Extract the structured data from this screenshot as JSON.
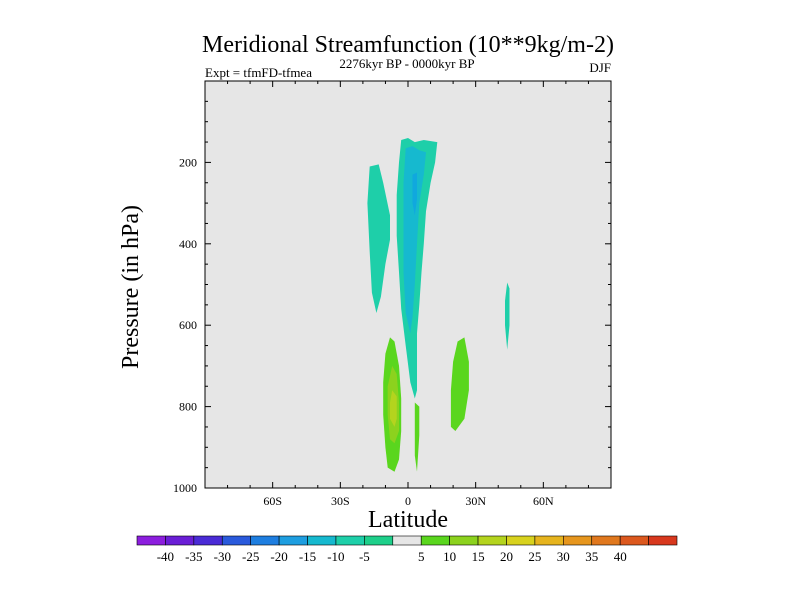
{
  "chart_data": {
    "type": "contour",
    "title": "Meridional Streamfunction (10**9kg/m-2)",
    "left_subtitle": "Expt = tfmFD-tfmea",
    "center_subtitle": "2276kyr BP - 0000kyr BP",
    "right_subtitle": "DJF",
    "xlabel": "Latitude",
    "ylabel": "Pressure (in hPa)",
    "xlim": [
      -90,
      90
    ],
    "ylim": [
      1000,
      0
    ],
    "x_ticks": [
      {
        "value": -60,
        "label": "60S"
      },
      {
        "value": -30,
        "label": "30S"
      },
      {
        "value": 0,
        "label": "0"
      },
      {
        "value": 30,
        "label": "30N"
      },
      {
        "value": 60,
        "label": "60N"
      }
    ],
    "y_ticks": [
      {
        "value": 200,
        "label": "200"
      },
      {
        "value": 400,
        "label": "400"
      },
      {
        "value": 600,
        "label": "600"
      },
      {
        "value": 800,
        "label": "800"
      },
      {
        "value": 1000,
        "label": "1000"
      }
    ],
    "background_color": "#e6e6e6",
    "regions": [
      {
        "name": "southern-upper-cell",
        "level": -10,
        "color": "#1ecfa9",
        "points": [
          [
            -17,
            210
          ],
          [
            -13,
            205
          ],
          [
            -11,
            250
          ],
          [
            -8,
            330
          ],
          [
            -8,
            390
          ],
          [
            -10,
            450
          ],
          [
            -12,
            530
          ],
          [
            -14,
            570
          ],
          [
            -16,
            520
          ],
          [
            -17,
            420
          ],
          [
            -18,
            300
          ]
        ]
      },
      {
        "name": "equatorial-upper-cell",
        "level": -10,
        "color": "#1ecfa9",
        "points": [
          [
            -3,
            145
          ],
          [
            0,
            140
          ],
          [
            3,
            150
          ],
          [
            7,
            145
          ],
          [
            13,
            150
          ],
          [
            12,
            200
          ],
          [
            10,
            250
          ],
          [
            8,
            320
          ],
          [
            7,
            400
          ],
          [
            6,
            470
          ],
          [
            5,
            550
          ],
          [
            4,
            620
          ],
          [
            4,
            700
          ],
          [
            4,
            760
          ],
          [
            3,
            780
          ],
          [
            1,
            740
          ],
          [
            -1,
            650
          ],
          [
            -3,
            560
          ],
          [
            -4,
            470
          ],
          [
            -5,
            380
          ],
          [
            -5,
            280
          ],
          [
            -4,
            200
          ]
        ]
      },
      {
        "name": "equatorial-core",
        "level": -15,
        "color": "#16b9cf",
        "points": [
          [
            -1,
            165
          ],
          [
            2,
            160
          ],
          [
            5,
            170
          ],
          [
            8,
            175
          ],
          [
            7,
            230
          ],
          [
            5,
            300
          ],
          [
            4,
            400
          ],
          [
            3,
            500
          ],
          [
            2,
            580
          ],
          [
            1,
            620
          ],
          [
            -1,
            570
          ],
          [
            -2,
            470
          ],
          [
            -2,
            350
          ],
          [
            -2,
            250
          ]
        ]
      },
      {
        "name": "equatorial-inner-core",
        "level": -20,
        "color": "#10a8de",
        "points": [
          [
            2,
            230
          ],
          [
            4,
            225
          ],
          [
            4,
            290
          ],
          [
            3,
            330
          ],
          [
            2,
            300
          ]
        ]
      },
      {
        "name": "southern-lower-cell",
        "level": 5,
        "color": "#5ad61e",
        "points": [
          [
            -8,
            630
          ],
          [
            -6,
            640
          ],
          [
            -4,
            700
          ],
          [
            -3,
            780
          ],
          [
            -3,
            860
          ],
          [
            -4,
            930
          ],
          [
            -6,
            960
          ],
          [
            -9,
            950
          ],
          [
            -10,
            900
          ],
          [
            -11,
            820
          ],
          [
            -11,
            740
          ],
          [
            -10,
            670
          ]
        ]
      },
      {
        "name": "southern-lower-core",
        "level": 10,
        "color": "#8cd21e",
        "points": [
          [
            -7,
            700
          ],
          [
            -5,
            720
          ],
          [
            -4,
            790
          ],
          [
            -4,
            860
          ],
          [
            -6,
            890
          ],
          [
            -8,
            880
          ],
          [
            -9,
            820
          ],
          [
            -9,
            750
          ]
        ]
      },
      {
        "name": "southern-lower-inner-core",
        "level": 15,
        "color": "#b4d41e",
        "points": [
          [
            -7,
            760
          ],
          [
            -5,
            775
          ],
          [
            -5,
            830
          ],
          [
            -6,
            850
          ],
          [
            -8,
            830
          ],
          [
            -8,
            790
          ]
        ]
      },
      {
        "name": "equator-lower-sliver",
        "level": 5,
        "color": "#5ad61e",
        "points": [
          [
            3,
            790
          ],
          [
            5,
            800
          ],
          [
            5,
            870
          ],
          [
            4,
            960
          ],
          [
            3,
            920
          ],
          [
            3,
            860
          ]
        ]
      },
      {
        "name": "northern-lower-cell",
        "level": 5,
        "color": "#5ad61e",
        "points": [
          [
            22,
            640
          ],
          [
            25,
            630
          ],
          [
            27,
            690
          ],
          [
            27,
            760
          ],
          [
            25,
            830
          ],
          [
            21,
            860
          ],
          [
            19,
            850
          ],
          [
            19,
            760
          ],
          [
            20,
            690
          ]
        ]
      },
      {
        "name": "northern-upper-sliver",
        "level": -10,
        "color": "#1ecfa9",
        "points": [
          [
            44,
            495
          ],
          [
            45,
            510
          ],
          [
            45,
            600
          ],
          [
            44,
            660
          ],
          [
            43,
            600
          ],
          [
            43,
            540
          ]
        ]
      }
    ],
    "colorbar": {
      "colors": [
        "#8c1ede",
        "#6a1ed6",
        "#4a2bd6",
        "#2a5adc",
        "#1e7ee0",
        "#1e9ee0",
        "#16b9cf",
        "#1ecfa9",
        "#1ecf8a",
        "#e6e6e6",
        "#5ad61e",
        "#8cd21e",
        "#b4d41e",
        "#d8d21e",
        "#e6b41e",
        "#e6961e",
        "#e0781e",
        "#dc581e",
        "#d8381e"
      ],
      "labels": [
        "-40",
        "-35",
        "-30",
        "-25",
        "-20",
        "-15",
        "-10",
        "-5",
        "5",
        "10",
        "15",
        "20",
        "25",
        "30",
        "35",
        "40"
      ]
    }
  }
}
